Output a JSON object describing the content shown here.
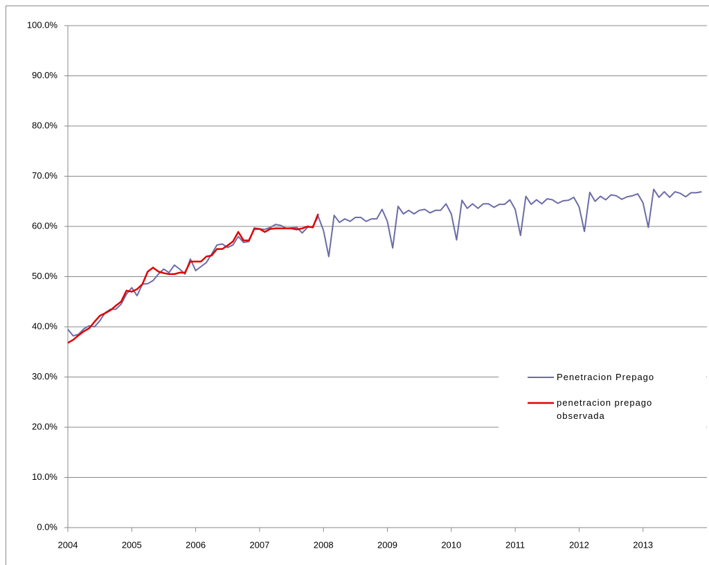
{
  "chart_data": {
    "type": "line",
    "x": [
      2004.0,
      2004.083,
      2004.167,
      2004.25,
      2004.333,
      2004.417,
      2004.5,
      2004.583,
      2004.667,
      2004.75,
      2004.833,
      2004.917,
      2005.0,
      2005.083,
      2005.167,
      2005.25,
      2005.333,
      2005.417,
      2005.5,
      2005.583,
      2005.667,
      2005.75,
      2005.833,
      2005.917,
      2006.0,
      2006.083,
      2006.167,
      2006.25,
      2006.333,
      2006.417,
      2006.5,
      2006.583,
      2006.667,
      2006.75,
      2006.833,
      2006.917,
      2007.0,
      2007.083,
      2007.167,
      2007.25,
      2007.333,
      2007.417,
      2007.5,
      2007.583,
      2007.667,
      2007.75,
      2007.833,
      2007.917,
      2008.0,
      2008.083,
      2008.167,
      2008.25,
      2008.333,
      2008.417,
      2008.5,
      2008.583,
      2008.667,
      2008.75,
      2008.833,
      2008.917,
      2009.0,
      2009.083,
      2009.167,
      2009.25,
      2009.333,
      2009.417,
      2009.5,
      2009.583,
      2009.667,
      2009.75,
      2009.833,
      2009.917,
      2010.0,
      2010.083,
      2010.167,
      2010.25,
      2010.333,
      2010.417,
      2010.5,
      2010.583,
      2010.667,
      2010.75,
      2010.833,
      2010.917,
      2011.0,
      2011.083,
      2011.167,
      2011.25,
      2011.333,
      2011.417,
      2011.5,
      2011.583,
      2011.667,
      2011.75,
      2011.833,
      2011.917,
      2012.0,
      2012.083,
      2012.167,
      2012.25,
      2012.333,
      2012.417,
      2012.5,
      2012.583,
      2012.667,
      2012.75,
      2012.833,
      2012.917,
      2013.0,
      2013.083,
      2013.167,
      2013.25,
      2013.333,
      2013.417,
      2013.5,
      2013.583,
      2013.667,
      2013.75,
      2013.833,
      2013.917
    ],
    "series": [
      {
        "name": "Penetracion Prepago",
        "color": "#6b6ba8",
        "values": [
          39.5,
          38.2,
          38.5,
          39.6,
          40.2,
          40.0,
          41.2,
          42.8,
          43.5,
          43.5,
          44.5,
          46.5,
          47.8,
          46.2,
          48.5,
          48.6,
          49.2,
          50.5,
          51.5,
          50.8,
          52.3,
          51.5,
          50.5,
          53.5,
          51.2,
          52.0,
          52.8,
          54.5,
          56.3,
          56.5,
          55.8,
          56.3,
          58.0,
          56.8,
          57.0,
          59.7,
          59.5,
          59.4,
          59.8,
          60.4,
          60.2,
          59.6,
          59.7,
          59.8,
          58.7,
          59.8,
          60.0,
          62.0,
          59.2,
          54.0,
          62.2,
          60.8,
          61.5,
          61.0,
          61.8,
          61.8,
          61.0,
          61.5,
          61.5,
          63.4,
          61.0,
          55.7,
          64.0,
          62.5,
          63.2,
          62.5,
          63.2,
          63.4,
          62.7,
          63.2,
          63.2,
          64.5,
          62.5,
          57.3,
          65.2,
          63.6,
          64.5,
          63.6,
          64.5,
          64.5,
          63.8,
          64.4,
          64.4,
          65.3,
          63.4,
          58.2,
          66.0,
          64.4,
          65.3,
          64.5,
          65.5,
          65.3,
          64.6,
          65.1,
          65.2,
          65.8,
          63.9,
          59.0,
          66.8,
          65.0,
          66.0,
          65.3,
          66.3,
          66.1,
          65.4,
          65.9,
          66.1,
          66.5,
          64.7,
          59.8,
          67.4,
          65.8,
          66.9,
          65.8,
          66.9,
          66.6,
          65.9,
          66.7,
          66.7,
          66.9
        ]
      },
      {
        "name": "penetracion prepago observada",
        "color": "#e00000",
        "values": [
          36.8,
          37.4,
          38.3,
          39.1,
          39.7,
          41.0,
          42.2,
          42.7,
          43.3,
          44.2,
          45.0,
          47.2,
          47.0,
          47.5,
          48.5,
          51.0,
          51.8,
          51.0,
          50.7,
          50.5,
          50.5,
          50.8,
          50.8,
          53.0,
          53.0,
          53.0,
          54.0,
          54.2,
          55.5,
          55.5,
          56.2,
          57.0,
          58.9,
          57.2,
          57.2,
          59.5,
          59.5,
          58.9,
          59.5,
          59.6,
          59.6,
          59.6,
          59.6,
          59.4,
          59.6,
          60.0,
          59.8,
          62.5,
          null,
          null,
          null,
          null,
          null,
          null,
          null,
          null,
          null,
          null,
          null,
          null,
          null,
          null,
          null,
          null,
          null,
          null,
          null,
          null,
          null,
          null,
          null,
          null,
          null,
          null,
          null,
          null,
          null,
          null,
          null,
          null,
          null,
          null,
          null,
          null,
          null,
          null,
          null,
          null,
          null,
          null,
          null,
          null,
          null,
          null,
          null,
          null,
          null,
          null,
          null,
          null,
          null,
          null,
          null,
          null,
          null,
          null,
          null,
          null,
          null,
          null,
          null,
          null,
          null,
          null,
          null,
          null,
          null,
          null,
          null,
          null
        ]
      }
    ],
    "xlim": [
      2004,
      2014
    ],
    "xticks": [
      2004,
      2005,
      2006,
      2007,
      2008,
      2009,
      2010,
      2011,
      2012,
      2013
    ],
    "ylim": [
      0,
      100
    ],
    "yticks": [
      {
        "value": 0,
        "label": "0.0%"
      },
      {
        "value": 10,
        "label": "10.0%"
      },
      {
        "value": 20,
        "label": "20.0%"
      },
      {
        "value": 30,
        "label": "30.0%"
      },
      {
        "value": 40,
        "label": "40.0%"
      },
      {
        "value": 50,
        "label": "50.0%"
      },
      {
        "value": 60,
        "label": "60.0%"
      },
      {
        "value": 70,
        "label": "70.0%"
      },
      {
        "value": 80,
        "label": "80.0%"
      },
      {
        "value": 90,
        "label": "90.0%"
      },
      {
        "value": 100,
        "label": "100.0%"
      }
    ],
    "grid": true,
    "legend": "right"
  }
}
